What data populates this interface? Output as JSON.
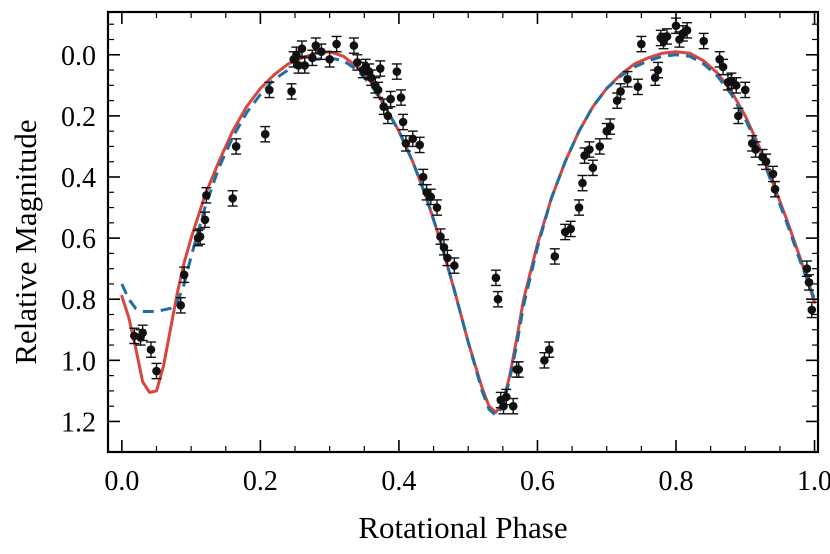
{
  "chart_data": {
    "type": "scatter",
    "xlabel": "Rotational Phase",
    "ylabel": "Relative Magnitude",
    "xlim": [
      -0.02,
      1.005
    ],
    "ylim": [
      1.3,
      -0.14
    ],
    "y_inverted": true,
    "grid": false,
    "xticks": [
      "0.0",
      "0.2",
      "0.4",
      "0.6",
      "0.8",
      "1.0"
    ],
    "yticks": [
      "0.0",
      "0.2",
      "0.4",
      "0.6",
      "0.8",
      "1.0",
      "1.2"
    ],
    "colors": {
      "points": "#111111",
      "red_model": "#d9453f",
      "blue_model": "#1f6fa3",
      "axis": "#000000"
    },
    "series": [
      {
        "kind": "points_with_errorbars",
        "error": 0.025,
        "x": [
          0.018,
          0.027,
          0.03,
          0.042,
          0.05,
          0.085,
          0.09,
          0.11,
          0.113,
          0.12,
          0.122,
          0.16,
          0.165,
          0.207,
          0.213,
          0.245,
          0.248,
          0.252,
          0.255,
          0.26,
          0.264,
          0.275,
          0.28,
          0.288,
          0.3,
          0.31,
          0.335,
          0.34,
          0.348,
          0.352,
          0.357,
          0.36,
          0.366,
          0.37,
          0.373,
          0.378,
          0.384,
          0.388,
          0.397,
          0.403,
          0.406,
          0.41,
          0.42,
          0.43,
          0.435,
          0.44,
          0.446,
          0.455,
          0.46,
          0.465,
          0.47,
          0.48,
          0.54,
          0.543,
          0.547,
          0.551,
          0.555,
          0.565,
          0.57,
          0.573,
          0.61,
          0.617,
          0.625,
          0.64,
          0.648,
          0.66,
          0.665,
          0.668,
          0.675,
          0.68,
          0.69,
          0.7,
          0.705,
          0.715,
          0.72,
          0.73,
          0.745,
          0.75,
          0.77,
          0.774,
          0.778,
          0.782,
          0.787,
          0.8,
          0.805,
          0.81,
          0.816,
          0.84,
          0.863,
          0.868,
          0.875,
          0.88,
          0.887,
          0.89,
          0.9,
          0.91,
          0.915,
          0.925,
          0.93,
          0.94,
          0.943,
          0.989,
          0.992,
          0.996
        ],
        "y": [
          0.92,
          0.925,
          0.91,
          0.965,
          1.035,
          0.82,
          0.72,
          0.6,
          0.595,
          0.54,
          0.46,
          0.47,
          0.3,
          0.26,
          0.115,
          0.12,
          0.015,
          0.0,
          0.035,
          -0.02,
          0.035,
          0.01,
          -0.03,
          -0.01,
          0.015,
          -0.035,
          -0.03,
          0.025,
          0.05,
          0.04,
          0.055,
          0.075,
          0.1,
          0.115,
          0.045,
          0.17,
          0.2,
          0.145,
          0.055,
          0.14,
          0.22,
          0.29,
          0.275,
          0.295,
          0.4,
          0.45,
          0.465,
          0.5,
          0.595,
          0.63,
          0.665,
          0.69,
          0.73,
          0.8,
          1.13,
          1.15,
          1.12,
          1.15,
          1.03,
          1.03,
          1.0,
          0.965,
          0.66,
          0.58,
          0.57,
          0.5,
          0.42,
          0.33,
          0.31,
          0.37,
          0.3,
          0.25,
          0.235,
          0.15,
          0.12,
          0.08,
          0.105,
          -0.035,
          0.075,
          0.05,
          -0.055,
          -0.045,
          -0.06,
          -0.095,
          -0.05,
          -0.07,
          -0.08,
          -0.045,
          0.015,
          0.04,
          0.09,
          0.085,
          0.1,
          0.2,
          0.115,
          0.29,
          0.31,
          0.335,
          0.35,
          0.39,
          0.44,
          0.7,
          0.745,
          0.835
        ]
      },
      {
        "kind": "curve",
        "style": "solid",
        "color": "#d9453f",
        "x": [
          0.0,
          0.01,
          0.02,
          0.03,
          0.04,
          0.05,
          0.06,
          0.07,
          0.08,
          0.09,
          0.1,
          0.12,
          0.14,
          0.16,
          0.18,
          0.2,
          0.22,
          0.24,
          0.26,
          0.28,
          0.3,
          0.32,
          0.34,
          0.36,
          0.38,
          0.4,
          0.42,
          0.44,
          0.46,
          0.48,
          0.5,
          0.52,
          0.53,
          0.54,
          0.55,
          0.56,
          0.57,
          0.58,
          0.6,
          0.62,
          0.64,
          0.66,
          0.68,
          0.7,
          0.72,
          0.74,
          0.76,
          0.78,
          0.8,
          0.82,
          0.84,
          0.86,
          0.88,
          0.9,
          0.92,
          0.94,
          0.96,
          0.98,
          1.0
        ],
        "y": [
          0.79,
          0.86,
          0.96,
          1.07,
          1.105,
          1.1,
          1.02,
          0.9,
          0.78,
          0.68,
          0.6,
          0.46,
          0.35,
          0.25,
          0.17,
          0.11,
          0.065,
          0.03,
          0.01,
          -0.005,
          -0.01,
          0.005,
          0.04,
          0.09,
          0.17,
          0.25,
          0.35,
          0.47,
          0.61,
          0.77,
          0.94,
          1.09,
          1.15,
          1.17,
          1.14,
          1.05,
          0.93,
          0.8,
          0.62,
          0.47,
          0.35,
          0.25,
          0.17,
          0.11,
          0.065,
          0.03,
          0.01,
          -0.005,
          -0.01,
          -0.005,
          0.02,
          0.06,
          0.12,
          0.2,
          0.3,
          0.42,
          0.54,
          0.67,
          0.81
        ]
      },
      {
        "kind": "curve",
        "style": "dashed",
        "color": "#1f6fa3",
        "x": [
          0.0,
          0.01,
          0.02,
          0.03,
          0.04,
          0.05,
          0.06,
          0.07,
          0.08,
          0.09,
          0.1,
          0.12,
          0.14,
          0.16,
          0.18,
          0.2,
          0.22,
          0.24,
          0.26,
          0.28,
          0.3,
          0.32,
          0.34,
          0.36,
          0.38,
          0.4,
          0.42,
          0.44,
          0.46,
          0.48,
          0.5,
          0.52,
          0.53,
          0.54,
          0.55,
          0.56,
          0.57,
          0.58,
          0.6,
          0.62,
          0.64,
          0.66,
          0.68,
          0.7,
          0.72,
          0.74,
          0.76,
          0.78,
          0.8,
          0.82,
          0.84,
          0.86,
          0.88,
          0.9,
          0.92,
          0.94,
          0.96,
          0.98,
          1.0
        ],
        "y": [
          0.75,
          0.8,
          0.83,
          0.84,
          0.84,
          0.84,
          0.835,
          0.83,
          0.81,
          0.75,
          0.66,
          0.5,
          0.37,
          0.27,
          0.19,
          0.13,
          0.08,
          0.05,
          0.03,
          0.015,
          0.01,
          0.02,
          0.05,
          0.1,
          0.17,
          0.25,
          0.35,
          0.47,
          0.61,
          0.77,
          0.94,
          1.1,
          1.16,
          1.18,
          1.15,
          1.06,
          0.95,
          0.82,
          0.63,
          0.47,
          0.35,
          0.25,
          0.17,
          0.11,
          0.07,
          0.04,
          0.02,
          0.005,
          0.0,
          0.005,
          0.03,
          0.07,
          0.13,
          0.21,
          0.31,
          0.43,
          0.55,
          0.68,
          0.8
        ]
      }
    ]
  }
}
